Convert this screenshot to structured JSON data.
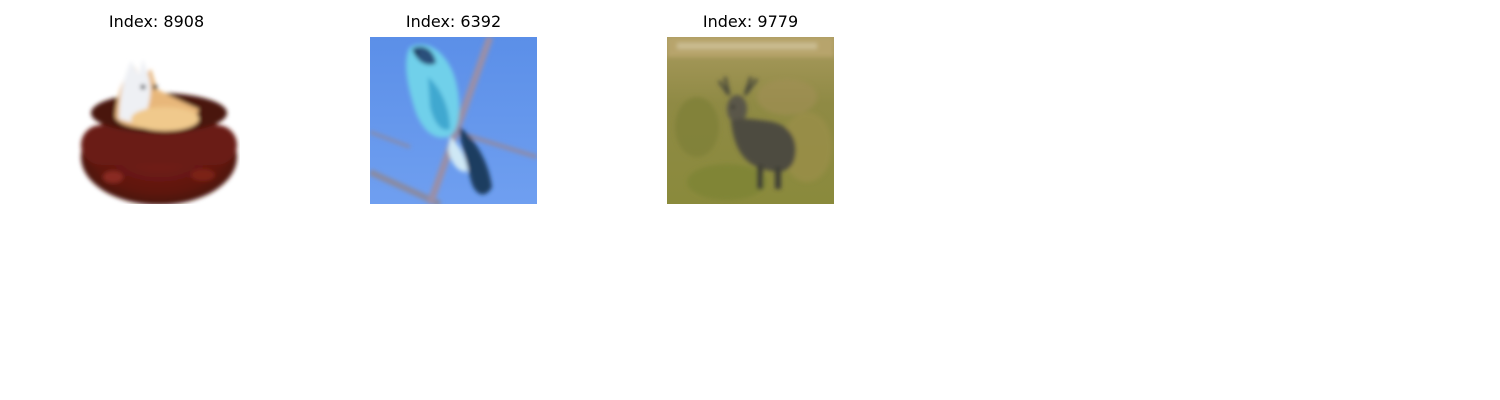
{
  "panels": [
    {
      "title": "Index: 8908",
      "subject": "cat in basket"
    },
    {
      "title": "Index: 6392",
      "subject": "bird on branch"
    },
    {
      "title": "Index: 9779",
      "subject": "deer in grass"
    }
  ]
}
